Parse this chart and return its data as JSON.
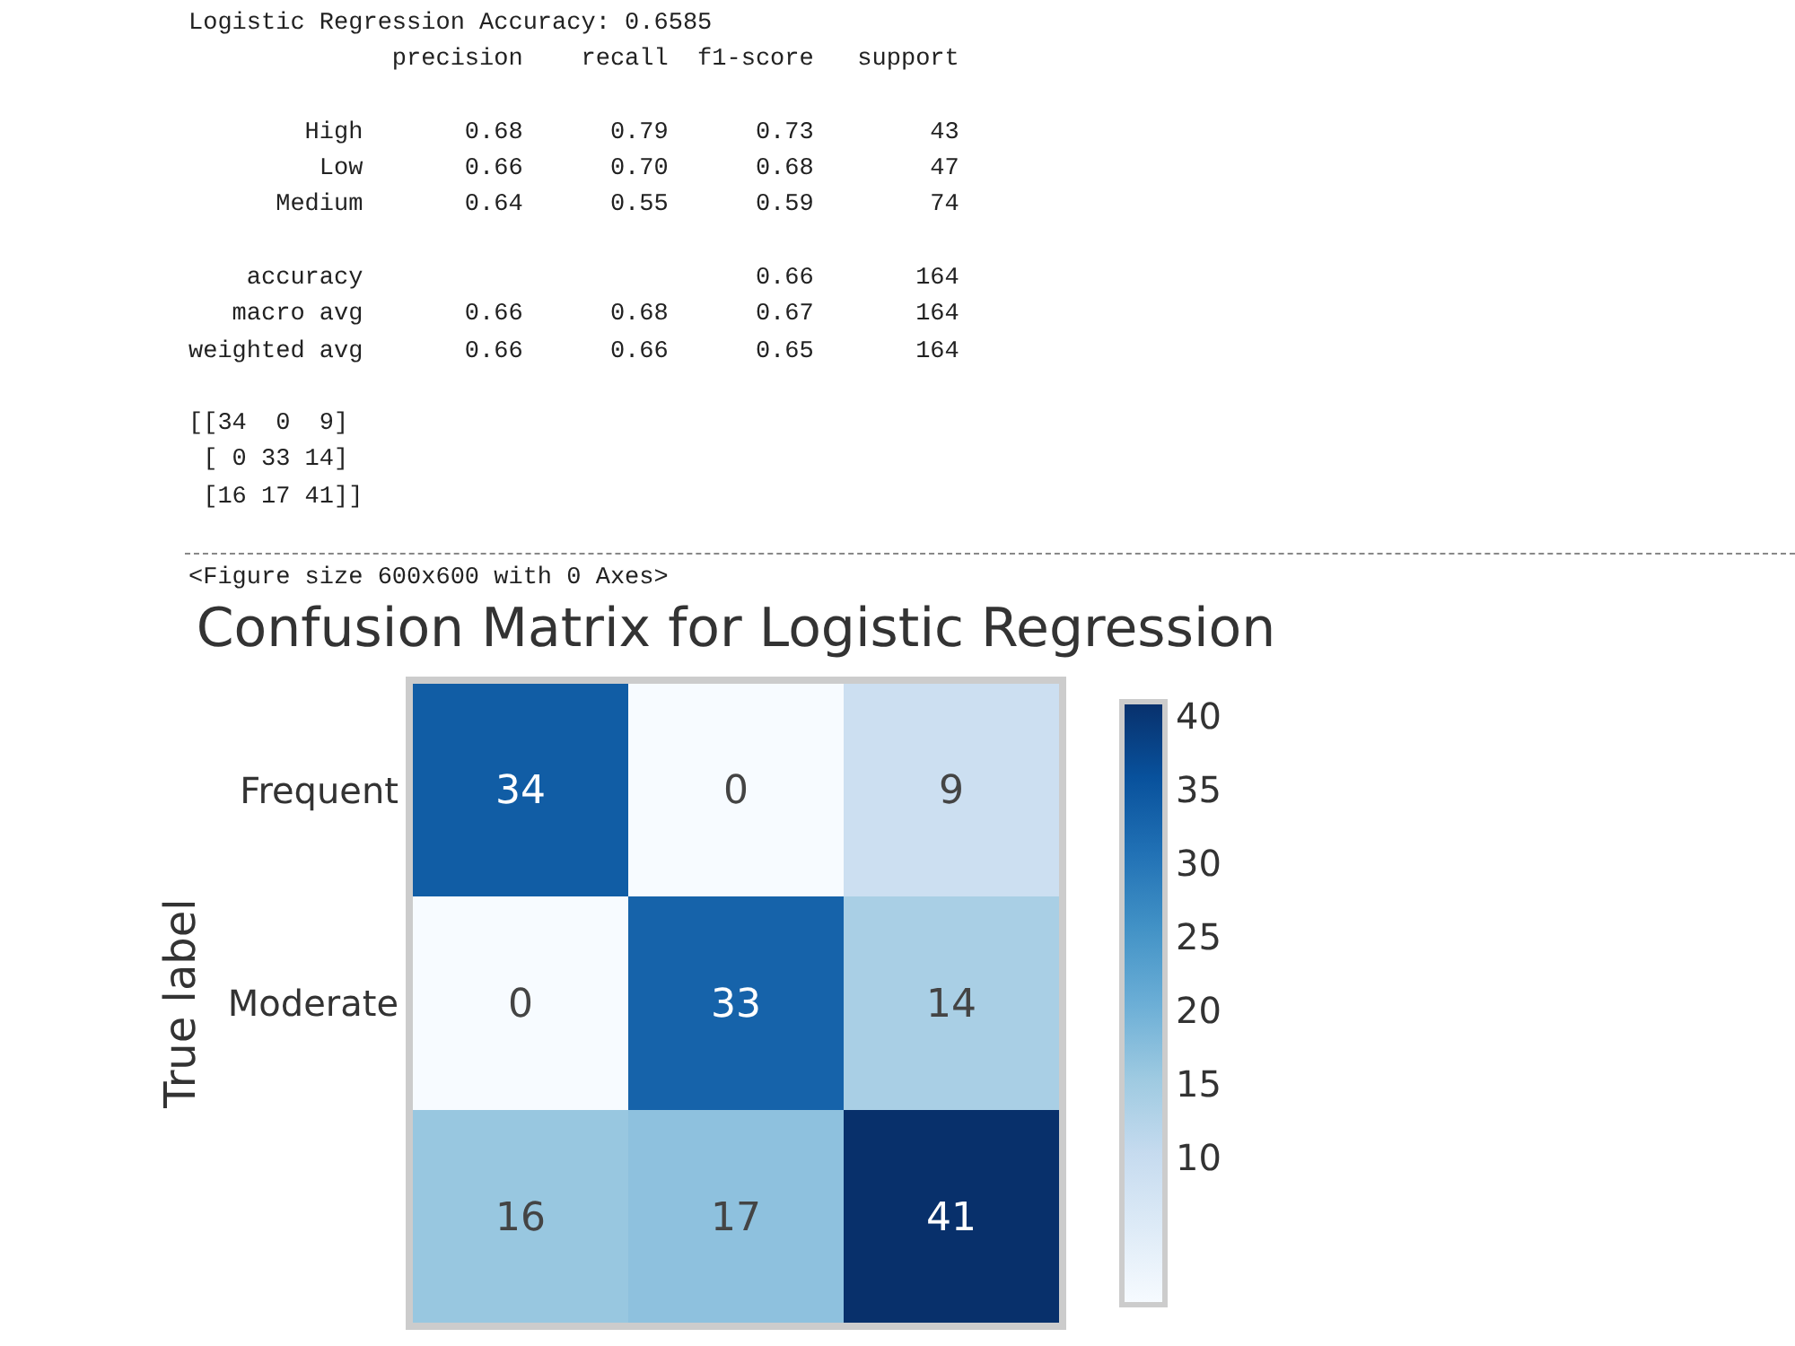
{
  "chart_data": {
    "type": "heatmap",
    "title": "Confusion Matrix for Logistic Regression",
    "ylabel": "True label",
    "categories": [
      null,
      null,
      null
    ],
    "y_categories": [
      "Frequent",
      "Moderate",
      null
    ],
    "cells": [
      [
        34,
        0,
        9
      ],
      [
        0,
        33,
        14
      ],
      [
        16,
        17,
        41
      ]
    ],
    "data_labels": true,
    "clim": [
      0,
      41
    ],
    "cticks": [
      10,
      15,
      20,
      25,
      30,
      35,
      40
    ],
    "annotations": [
      "Logistic Regression Accuracy: 0.6585",
      "              precision    recall  f1-score   support\n\n        High       0.68      0.79      0.73        43\n         Low       0.66      0.70      0.68        47\n      Medium       0.64      0.55      0.59        74\n\n    accuracy                           0.66       164\n   macro avg       0.66      0.68      0.67       164\nweighted avg       0.66      0.66      0.65       164",
      "[[34  0  9]\n [ 0 33 14]\n [16 17 41]]",
      "<Figure size 600x600 with 0 Axes>"
    ]
  }
}
